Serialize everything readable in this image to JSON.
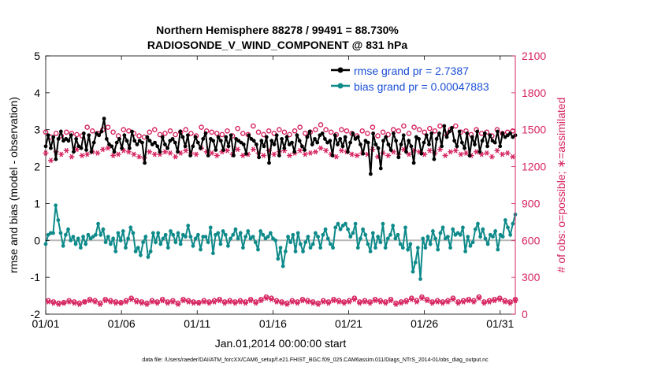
{
  "chart_data": {
    "type": "line",
    "title_line1": "Northern Hemisphere 88278 / 99491 = 88.730%",
    "title_line2": "RADIOSONDE_V_WIND_COMPONENT @ 831 hPa",
    "xlabel": "Jan.01,2014 00:00:00 start",
    "ylabel_left": "rmse and bias (model - observation)",
    "ylabel_right": "# of obs: o=possible; ∗=assimilated",
    "footer": "data file: /Users/raeder/DAI/ATM_forcXX/CAM6_setup/f.e21.FHIST_BGC.f09_025.CAM6assim.011/Diags_NTrS_2014-01/obs_diag_output.nc",
    "x_ticks": [
      "01/01",
      "01/06",
      "01/11",
      "01/16",
      "01/21",
      "01/26",
      "01/31"
    ],
    "x_tick_days": [
      0,
      5,
      10,
      15,
      20,
      25,
      30
    ],
    "x_range": [
      0,
      31
    ],
    "y_left_ticks": [
      "5",
      "4",
      "3",
      "2",
      "1",
      "0",
      "-1",
      "-2"
    ],
    "y_left_tick_values": [
      5,
      4,
      3,
      2,
      1,
      0,
      -1,
      -2
    ],
    "y_left_range": [
      -2,
      5
    ],
    "y_right_ticks": [
      "2100",
      "1800",
      "1500",
      "1200",
      "900",
      "600",
      "300",
      "0"
    ],
    "y_right_tick_values": [
      2100,
      1800,
      1500,
      1200,
      900,
      600,
      300,
      0
    ],
    "y_right_range": [
      0,
      2100
    ],
    "legend": {
      "rmse_label": "rmse grand pr = 2.7387",
      "bias_label": "bias grand pr = 0.00047883"
    },
    "colors": {
      "rmse": "#000000",
      "bias": "#0f8a8a",
      "obs": "#d6245f",
      "axis": "#000000",
      "zero_line": "#b8b8b8"
    },
    "series": [
      {
        "name": "rmse",
        "axis": "left",
        "values": [
          2.55,
          2.85,
          2.5,
          2.8,
          2.2,
          2.75,
          2.95,
          2.7,
          2.75,
          2.7,
          2.85,
          2.4,
          2.75,
          2.55,
          2.5,
          2.9,
          2.45,
          2.85,
          2.4,
          2.65,
          2.9,
          2.85,
          2.95,
          3.3,
          2.75,
          2.6,
          2.55,
          2.4,
          2.65,
          2.75,
          2.5,
          2.85,
          2.7,
          2.5,
          2.95,
          2.7,
          2.6,
          2.7,
          2.65,
          2.1,
          2.8,
          2.7,
          2.6,
          2.65,
          2.55,
          2.4,
          2.8,
          2.6,
          2.5,
          2.7,
          2.75,
          2.65,
          2.4,
          2.95,
          2.8,
          2.55,
          2.85,
          2.3,
          2.55,
          2.8,
          2.65,
          2.5,
          2.75,
          2.9,
          2.3,
          2.75,
          2.7,
          2.45,
          2.8,
          2.7,
          2.45,
          2.8,
          2.55,
          2.85,
          2.3,
          2.75,
          2.7,
          2.65,
          2.6,
          2.35,
          2.85,
          2.75,
          2.7,
          2.6,
          2.25,
          2.7,
          2.55,
          2.8,
          2.1,
          2.7,
          2.6,
          2.85,
          2.3,
          2.75,
          2.5,
          2.8,
          2.6,
          2.65,
          2.4,
          2.85,
          2.7,
          2.55,
          2.45,
          2.8,
          2.95,
          2.6,
          2.75,
          2.65,
          2.85,
          2.9,
          2.75,
          2.65,
          2.7,
          2.3,
          2.85,
          2.6,
          2.75,
          2.55,
          2.8,
          2.4,
          2.65,
          2.9,
          2.75,
          2.8,
          2.6,
          2.35,
          2.7,
          2.65,
          1.8,
          2.9,
          2.6,
          2.5,
          1.95,
          2.7,
          2.8,
          2.6,
          2.45,
          2.9,
          2.7,
          2.25,
          2.6,
          2.85,
          2.4,
          2.7,
          2.55,
          2.1,
          2.8,
          2.75,
          2.35,
          2.65,
          2.85,
          2.6,
          2.9,
          2.2,
          2.75,
          2.9,
          2.55,
          3.1,
          2.8,
          2.95,
          3.05,
          2.7,
          2.55,
          2.95,
          2.65,
          2.5,
          2.9,
          2.3,
          2.8,
          2.6,
          2.95,
          2.4,
          2.7,
          2.9,
          2.55,
          2.85,
          2.7,
          2.65,
          2.95,
          2.55,
          2.9,
          2.8,
          2.85,
          2.9,
          2.8,
          2.85
        ]
      },
      {
        "name": "bias",
        "axis": "left",
        "values": [
          -0.1,
          0.15,
          0.2,
          0.2,
          0.95,
          0.55,
          0.2,
          -0.15,
          0.15,
          0.3,
          0.0,
          0.1,
          -0.1,
          0.05,
          -0.2,
          0.1,
          -0.1,
          0.15,
          0.05,
          0.1,
          0.15,
          0.45,
          0.15,
          0.3,
          -0.05,
          0.1,
          -0.1,
          0.05,
          -0.3,
          0.2,
          0.0,
          0.25,
          -0.2,
          0.05,
          0.35,
          0.2,
          -0.3,
          -0.2,
          -0.4,
          -0.05,
          0.1,
          -0.45,
          -0.3,
          0.2,
          -0.05,
          0.2,
          -0.1,
          0.05,
          0.15,
          -0.2,
          0.25,
          0.15,
          -0.05,
          0.2,
          -0.1,
          0.15,
          0.1,
          0.4,
          0.1,
          -0.15,
          0.05,
          0.15,
          -0.25,
          0.1,
          0.1,
          -0.05,
          0.35,
          -0.35,
          0.15,
          0.2,
          -0.1,
          0.25,
          0.15,
          -0.15,
          0.05,
          0.15,
          0.3,
          0.05,
          0.2,
          -0.2,
          0.1,
          0.25,
          0.05,
          0.1,
          -0.05,
          -0.25,
          0.25,
          0.15,
          0.05,
          0.1,
          0.2,
          0.05,
          0.0,
          -0.5,
          -0.2,
          -0.7,
          -0.3,
          0.1,
          -0.05,
          0.15,
          -0.3,
          0.2,
          -0.1,
          -0.3,
          -0.05,
          0.1,
          -0.2,
          -0.1,
          0.2,
          0.1,
          -0.2,
          0.15,
          0.3,
          0.05,
          -0.1,
          -0.2,
          0.35,
          0.45,
          0.3,
          0.4,
          0.45,
          0.3,
          0.1,
          0.2,
          0.45,
          -0.2,
          0.05,
          0.3,
          0.15,
          -0.1,
          -0.3,
          0.2,
          -0.2,
          0.1,
          -0.05,
          0.45,
          -0.2,
          0.05,
          0.15,
          0.4,
          0.05,
          0.15,
          -0.1,
          -0.2,
          0.35,
          -0.25,
          -0.1,
          -0.85,
          -0.6,
          -0.2,
          -1.05,
          0.05,
          -0.2,
          0.1,
          -0.1,
          0.25,
          0.05,
          -0.25,
          0.2,
          0.35,
          0.05,
          0.1,
          -0.2,
          0.3,
          0.15,
          0.2,
          0.15,
          0.35,
          -0.3,
          0.1,
          -0.15,
          -0.05,
          0.3,
          0.45,
          0.1,
          0.3,
          0.05,
          -0.1,
          0.15,
          0.1,
          0.25,
          -0.25,
          0.15,
          0.1,
          0.55,
          0.35,
          0.15,
          0.45,
          0.7
        ]
      },
      {
        "name": "obs_possible",
        "axis": "right",
        "values": [
          1480,
          110,
          1440,
          100,
          1470,
          90,
          1450,
          95,
          1480,
          110,
          1470,
          100,
          1460,
          90,
          1450,
          100,
          1520,
          120,
          1490,
          110,
          1470,
          90,
          1500,
          120,
          1520,
          110,
          1480,
          100,
          1450,
          95,
          1500,
          110,
          1490,
          130,
          1470,
          110,
          1450,
          100,
          1440,
          90,
          1480,
          110,
          1500,
          100,
          1460,
          120,
          1470,
          100,
          1490,
          110,
          1460,
          90,
          1480,
          120,
          1500,
          110,
          1470,
          100,
          1450,
          95,
          1520,
          110,
          1490,
          100,
          1480,
          110,
          1470,
          120,
          1460,
          100,
          1490,
          110,
          1450,
          100,
          1510,
          110,
          1470,
          100,
          1460,
          120,
          1530,
          100,
          1480,
          120,
          1460,
          140,
          1490,
          130,
          1470,
          110,
          1500,
          100,
          1480,
          90,
          1460,
          110,
          1490,
          100,
          1520,
          120,
          1470,
          110,
          1480,
          100,
          1500,
          90,
          1540,
          110,
          1500,
          100,
          1480,
          120,
          1460,
          110,
          1500,
          100,
          1490,
          110,
          1470,
          130,
          1450,
          100,
          1490,
          110,
          1470,
          100,
          1520,
          120,
          1450,
          110,
          1480,
          100,
          1460,
          120,
          1500,
          90,
          1490,
          100,
          1530,
          110,
          1470,
          130,
          1520,
          110,
          1500,
          140,
          1480,
          120,
          1510,
          100,
          1490,
          110,
          1530,
          100,
          1470,
          110,
          1500,
          130,
          1530,
          100,
          1480,
          110,
          1490,
          120,
          1460,
          110,
          1500,
          140,
          1470,
          100,
          1480,
          110,
          1450,
          120,
          1500,
          130,
          1470,
          110,
          1480,
          100,
          1490,
          120
        ]
      },
      {
        "name": "obs_assimilated",
        "axis": "right",
        "values": [
          1310,
          100,
          1250,
          90,
          1320,
          80,
          1300,
          90,
          1330,
          100,
          1280,
          90,
          1340,
          80,
          1290,
          100,
          1300,
          110,
          1320,
          100,
          1310,
          80,
          1340,
          110,
          1350,
          100,
          1290,
          90,
          1300,
          90,
          1330,
          100,
          1320,
          120,
          1300,
          100,
          1280,
          90,
          1270,
          80,
          1320,
          100,
          1300,
          90,
          1300,
          110,
          1320,
          90,
          1310,
          100,
          1280,
          80,
          1310,
          110,
          1330,
          100,
          1310,
          90,
          1300,
          90,
          1350,
          100,
          1320,
          90,
          1310,
          100,
          1290,
          110,
          1320,
          90,
          1330,
          100,
          1300,
          90,
          1340,
          100,
          1290,
          90,
          1300,
          110,
          1340,
          90,
          1310,
          110,
          1290,
          130,
          1330,
          120,
          1300,
          100,
          1320,
          90,
          1330,
          80,
          1290,
          100,
          1310,
          90,
          1330,
          110,
          1300,
          100,
          1310,
          90,
          1320,
          80,
          1350,
          100,
          1330,
          90,
          1300,
          110,
          1280,
          100,
          1330,
          90,
          1320,
          100,
          1300,
          120,
          1290,
          90,
          1310,
          100,
          1300,
          90,
          1340,
          110,
          1280,
          100,
          1310,
          90,
          1290,
          110,
          1320,
          80,
          1300,
          90,
          1340,
          100,
          1300,
          120,
          1330,
          100,
          1320,
          130,
          1300,
          110,
          1330,
          90,
          1310,
          100,
          1340,
          90,
          1290,
          100,
          1320,
          120,
          1330,
          90,
          1300,
          100,
          1310,
          110,
          1290,
          100,
          1320,
          130,
          1300,
          90,
          1310,
          100,
          1280,
          110,
          1330,
          120,
          1300,
          100,
          1310,
          90,
          1280,
          110
        ]
      }
    ]
  }
}
